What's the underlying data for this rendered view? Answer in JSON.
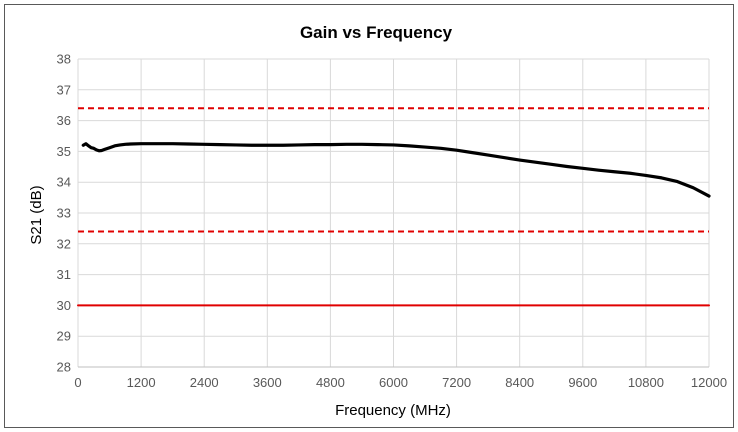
{
  "chart_data": {
    "type": "line",
    "title": "Gain vs Frequency",
    "xlabel": "Frequency (MHz)",
    "ylabel": "S21 (dB)",
    "xlim": [
      0,
      12000
    ],
    "ylim": [
      28,
      38
    ],
    "xticks": [
      0,
      1200,
      2400,
      3600,
      4800,
      6000,
      7200,
      8400,
      9600,
      10800,
      12000
    ],
    "yticks": [
      28,
      29,
      30,
      31,
      32,
      33,
      34,
      35,
      36,
      37,
      38
    ],
    "grid": true,
    "legend": "none",
    "series": [
      {
        "style": "solid",
        "color": "#000000",
        "x": [
          100,
          150,
          200,
          250,
          300,
          350,
          400,
          450,
          500,
          600,
          700,
          800,
          900,
          1000,
          1200,
          1500,
          1800,
          2100,
          2400,
          2700,
          3000,
          3300,
          3600,
          3900,
          4200,
          4500,
          4800,
          5100,
          5400,
          5700,
          6000,
          6300,
          6600,
          6900,
          7200,
          7500,
          7800,
          8100,
          8400,
          8700,
          9000,
          9300,
          9600,
          9900,
          10200,
          10500,
          10800,
          11100,
          11400,
          11700,
          12000
        ],
        "y": [
          35.2,
          35.25,
          35.18,
          35.12,
          35.1,
          35.05,
          35.02,
          35.03,
          35.06,
          35.12,
          35.18,
          35.21,
          35.23,
          35.24,
          35.25,
          35.25,
          35.25,
          35.24,
          35.23,
          35.22,
          35.21,
          35.2,
          35.2,
          35.2,
          35.21,
          35.22,
          35.22,
          35.23,
          35.23,
          35.22,
          35.21,
          35.18,
          35.14,
          35.1,
          35.04,
          34.96,
          34.88,
          34.8,
          34.72,
          34.65,
          34.58,
          34.51,
          34.45,
          34.39,
          34.34,
          34.29,
          34.22,
          34.14,
          34.02,
          33.82,
          33.55
        ]
      },
      {
        "style": "dashed",
        "color": "#e00000",
        "x": [
          0,
          12000
        ],
        "y": [
          36.4,
          36.4
        ]
      },
      {
        "style": "dashed",
        "color": "#e00000",
        "x": [
          0,
          12000
        ],
        "y": [
          32.4,
          32.4
        ]
      },
      {
        "style": "solid",
        "color": "#e00000",
        "x": [
          0,
          12000
        ],
        "y": [
          30,
          30
        ]
      }
    ]
  }
}
